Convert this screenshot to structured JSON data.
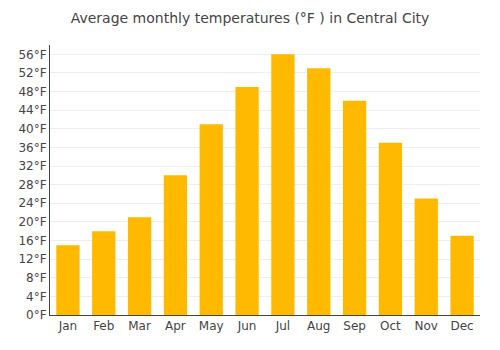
{
  "chart_data": {
    "type": "bar",
    "title": "Average monthly temperatures (°F ) in Central City",
    "categories": [
      "Jan",
      "Feb",
      "Mar",
      "Apr",
      "May",
      "Jun",
      "Jul",
      "Aug",
      "Sep",
      "Oct",
      "Nov",
      "Dec"
    ],
    "values": [
      15,
      18,
      21,
      30,
      41,
      49,
      56,
      53,
      46,
      37,
      25,
      17
    ],
    "color": "#FFBA00",
    "ylim": [
      0,
      58
    ],
    "yticks": [
      {
        "value": 0,
        "label": "0°F"
      },
      {
        "value": 4,
        "label": "4°F"
      },
      {
        "value": 8,
        "label": "8°F"
      },
      {
        "value": 12,
        "label": "12°F"
      },
      {
        "value": 16,
        "label": "16°F"
      },
      {
        "value": 20,
        "label": "20°F"
      },
      {
        "value": 24,
        "label": "24°F"
      },
      {
        "value": 28,
        "label": "28°F"
      },
      {
        "value": 32,
        "label": "32°F"
      },
      {
        "value": 36,
        "label": "36°F"
      },
      {
        "value": 40,
        "label": "40°F"
      },
      {
        "value": 44,
        "label": "44°F"
      },
      {
        "value": 48,
        "label": "48°F"
      },
      {
        "value": 52,
        "label": "52°F"
      },
      {
        "value": 56,
        "label": "56°F"
      }
    ],
    "grid": true
  }
}
